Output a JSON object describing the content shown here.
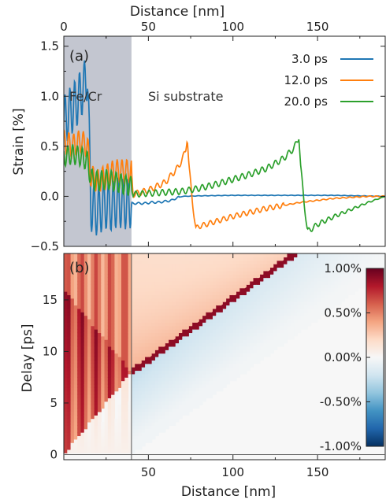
{
  "chart_data": [
    {
      "panel": "(a)",
      "type": "line",
      "title": "",
      "xlabel": "Distance [nm]",
      "ylabel": "Strain [%]",
      "xlim": [
        0,
        190
      ],
      "ylim": [
        -0.5,
        1.6
      ],
      "x_ticks": [
        0,
        50,
        100,
        150
      ],
      "y_ticks": [
        -0.5,
        0.0,
        0.5,
        1.0,
        1.5
      ],
      "y_tick_labels": [
        "−0.5",
        "0.0",
        "0.5",
        "1.0",
        "1.5"
      ],
      "grid": false,
      "legend_position": "top-right",
      "regions": [
        {
          "label": "Fe/Cr",
          "x_range": [
            0,
            40
          ],
          "color": "#c3c6d0"
        },
        {
          "label": "Si substrate",
          "x_range": [
            40,
            190
          ]
        }
      ],
      "series": [
        {
          "name": "3.0 ps",
          "color": "#1f77b4",
          "x": [
            0,
            4,
            8,
            12,
            14,
            16,
            20,
            24,
            28,
            32,
            36,
            40,
            44,
            48,
            52,
            56,
            60,
            64,
            66,
            68,
            70,
            80,
            100,
            130,
            160,
            190
          ],
          "y": [
            0.75,
            0.85,
            0.95,
            1.1,
            1.22,
            -0.1,
            -0.15,
            -0.08,
            -0.1,
            -0.06,
            -0.08,
            -0.07,
            -0.07,
            -0.07,
            -0.06,
            -0.06,
            -0.05,
            -0.04,
            -0.02,
            -0.01,
            0.0,
            0.005,
            0.01,
            0.01,
            0.01,
            0.0
          ]
        },
        {
          "name": "12.0 ps",
          "color": "#ff7f0e",
          "x": [
            0,
            5,
            10,
            14,
            16,
            20,
            25,
            30,
            35,
            40,
            41,
            50,
            60,
            68,
            72,
            73,
            74,
            76,
            78,
            80,
            90,
            100,
            110,
            120,
            130,
            140,
            150,
            160,
            170,
            180,
            190
          ],
          "y": [
            0.55,
            0.5,
            0.55,
            0.5,
            0.2,
            0.15,
            0.2,
            0.25,
            0.25,
            0.25,
            0.02,
            0.06,
            0.14,
            0.3,
            0.45,
            0.6,
            0.3,
            -0.05,
            -0.32,
            -0.3,
            -0.25,
            -0.2,
            -0.16,
            -0.12,
            -0.09,
            -0.06,
            -0.04,
            -0.02,
            -0.01,
            0.0,
            0.0
          ]
        },
        {
          "name": "20.0 ps",
          "color": "#2ca02c",
          "x": [
            0,
            5,
            10,
            14,
            16,
            20,
            25,
            30,
            35,
            40,
            41,
            50,
            60,
            70,
            80,
            90,
            100,
            110,
            120,
            130,
            136,
            138,
            139,
            140,
            142,
            144,
            146,
            150,
            160,
            170,
            180,
            190
          ],
          "y": [
            0.4,
            0.42,
            0.4,
            0.35,
            0.18,
            0.15,
            0.17,
            0.15,
            0.12,
            0.1,
            0.02,
            0.03,
            0.04,
            0.05,
            0.08,
            0.12,
            0.17,
            0.22,
            0.28,
            0.38,
            0.48,
            0.55,
            0.6,
            0.3,
            -0.05,
            -0.35,
            -0.33,
            -0.28,
            -0.2,
            -0.13,
            -0.06,
            0.0
          ]
        }
      ]
    },
    {
      "panel": "(b)",
      "type": "heatmap",
      "title": "",
      "xlabel": "Distance [nm]",
      "ylabel": "Delay [ps]",
      "xlim": [
        0,
        190
      ],
      "ylim": [
        -0.5,
        19.5
      ],
      "x_ticks": [
        50,
        100,
        150
      ],
      "y_ticks": [
        0,
        5,
        10,
        15
      ],
      "interface_x": 40,
      "colormap": "RdBu_r",
      "colorbar": {
        "range": [
          -1.0,
          1.0
        ],
        "ticks": [
          1.0,
          0.5,
          0.0,
          -0.5,
          -1.0
        ],
        "tick_labels": [
          "1.00%",
          "0.50%",
          "0.00%",
          "-0.50%",
          "-1.00%"
        ],
        "colors": [
          "#67001f",
          "#b2182b",
          "#d6604d",
          "#f4a582",
          "#fddbc7",
          "#f7f7f7",
          "#d1e5f0",
          "#92c5de",
          "#4393c3",
          "#2166ac",
          "#053061"
        ]
      },
      "features": {
        "compressive_front_slope_nm_per_ps": 8.4,
        "compressive_front_start": [
          40,
          8
        ],
        "peak_value_pct": 0.9,
        "tensile_front_peak_value_pct": -0.25
      }
    }
  ]
}
